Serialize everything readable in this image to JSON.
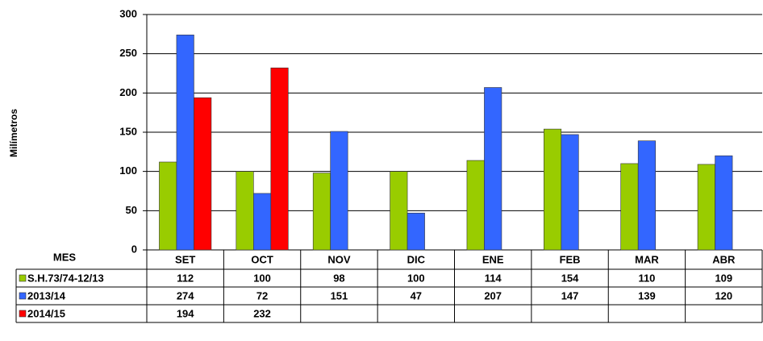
{
  "chart_data": {
    "type": "bar",
    "y_label": "Milímetros",
    "x_label": "MES",
    "categories": [
      "SET",
      "OCT",
      "NOV",
      "DIC",
      "ENE",
      "FEB",
      "MAR",
      "ABR"
    ],
    "series": [
      {
        "name": "S.H.73/74-12/13",
        "color": "#99cc00",
        "values": [
          112,
          100,
          98,
          100,
          114,
          154,
          110,
          109
        ]
      },
      {
        "name": "2013/14",
        "color": "#3366ff",
        "values": [
          274,
          72,
          151,
          47,
          207,
          147,
          139,
          120
        ]
      },
      {
        "name": "2014/15",
        "color": "#ff0000",
        "values": [
          194,
          232,
          null,
          null,
          null,
          null,
          null,
          null
        ]
      }
    ],
    "ylim": [
      0,
      300
    ],
    "yticks": [
      0,
      50,
      100,
      150,
      200,
      250,
      300
    ],
    "grid": true
  }
}
